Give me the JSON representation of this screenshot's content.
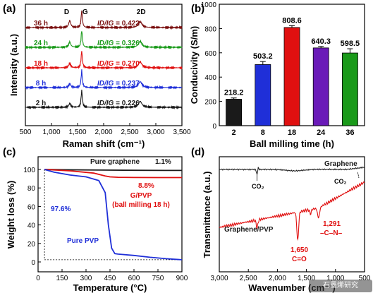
{
  "panels": [
    "(a)",
    "(b)",
    "(c)",
    "(d)"
  ],
  "watermark": "石墨烯研究",
  "chart_data": [
    {
      "panel": "(a)",
      "type": "line",
      "xlabel": "Raman shift (cm⁻¹)",
      "ylabel": "Intensity (a.u.)",
      "xlim": [
        500,
        3500
      ],
      "xticks": [
        "500",
        "1,000",
        "1,500",
        "2,000",
        "2,500",
        "3,000",
        "3,500"
      ],
      "xtick_values": [
        500,
        1000,
        1500,
        2000,
        2500,
        3000,
        3500
      ],
      "peak_labels": [
        {
          "text": "D",
          "x": 1350
        },
        {
          "text": "G",
          "x": 1580
        },
        {
          "text": "2D",
          "x": 2700
        }
      ],
      "series": [
        {
          "name": "2 h",
          "ratio": "I_D/I_G = 0.226",
          "color": "#1a1a1a"
        },
        {
          "name": "8 h",
          "ratio": "I_D/I_G = 0.237",
          "color": "#1f2fd8"
        },
        {
          "name": "18 h",
          "ratio": "I_D/I_G = 0.270",
          "color": "#e01010"
        },
        {
          "name": "24 h",
          "ratio": "I_D/I_G = 0.326",
          "color": "#1a9a1a"
        },
        {
          "name": "36 h",
          "ratio": "I_D/I_G = 0.422",
          "color": "#7a1010"
        }
      ],
      "peaks": [
        {
          "center": 1350,
          "relative_heights": [
            0.226,
            0.237,
            0.27,
            0.326,
            0.422
          ]
        },
        {
          "center": 1580,
          "relative_heights": [
            1,
            1,
            1,
            1,
            1
          ]
        },
        {
          "center": 2700,
          "relative_heights": [
            0.35,
            0.35,
            0.35,
            0.35,
            0.35
          ]
        }
      ]
    },
    {
      "panel": "(b)",
      "type": "bar",
      "xlabel": "Ball milling time (h)",
      "ylabel": "Conducivity (S/m)",
      "categories": [
        "2",
        "8",
        "18",
        "24",
        "36"
      ],
      "values": [
        218.2,
        503.2,
        808.6,
        640.3,
        598.5
      ],
      "value_labels": [
        "218.2",
        "503.2",
        "808.6",
        "640.3",
        "598.5"
      ],
      "errors": [
        10,
        25,
        15,
        12,
        35
      ],
      "colors": [
        "#1a1a1a",
        "#1f2fd8",
        "#e01010",
        "#6a1ab8",
        "#1a9a1a"
      ],
      "ylim": [
        0,
        1000
      ],
      "yticks": [
        0,
        200,
        400,
        600,
        800,
        1000
      ]
    },
    {
      "panel": "(c)",
      "type": "line",
      "xlabel": "Temperature (°C)",
      "ylabel": "Weight loss (%)",
      "xlim": [
        0,
        900
      ],
      "ylim": [
        0,
        100
      ],
      "xticks": [
        0,
        150,
        300,
        450,
        600,
        750,
        900
      ],
      "yticks": [
        0,
        20,
        40,
        60,
        80,
        100
      ],
      "series": [
        {
          "name": "Pure graphene",
          "color": "#1a1a1a",
          "x": [
            40,
            200,
            400,
            600,
            800,
            900
          ],
          "y": [
            100,
            99.6,
            99.3,
            99.1,
            98.95,
            98.9
          ]
        },
        {
          "name": "G/PVP (ball milling 18 h)",
          "color": "#e01010",
          "x": [
            40,
            200,
            350,
            420,
            450,
            500,
            600,
            750,
            900
          ],
          "y": [
            100,
            98.5,
            96,
            93,
            92,
            91.5,
            91.3,
            91.2,
            91.2
          ]
        },
        {
          "name": "Pure PVP",
          "color": "#1f2fd8",
          "x": [
            40,
            100,
            200,
            300,
            380,
            420,
            440,
            460,
            480,
            500,
            600,
            700,
            800,
            900
          ],
          "y": [
            100,
            97,
            94,
            92,
            88,
            75,
            40,
            15,
            9,
            8.5,
            7,
            5,
            3.5,
            2.4
          ]
        }
      ],
      "annotations": [
        {
          "text": "1.1%",
          "color": "#1a1a1a"
        },
        {
          "text": "8.8%",
          "color": "#e01010"
        },
        {
          "text": "97.6%",
          "color": "#1f2fd8"
        }
      ]
    },
    {
      "panel": "(d)",
      "type": "line",
      "xlabel": "Wavenumber (cm⁻¹)",
      "ylabel": "Transmittance (a.u.)",
      "xlim": [
        3000,
        500
      ],
      "xticks": [
        "3,000",
        "2,500",
        "2,000",
        "1,500",
        "1,000",
        "500"
      ],
      "xtick_values": [
        3000,
        2500,
        2000,
        1500,
        1000,
        500
      ],
      "series": [
        {
          "name": "Graphene",
          "color": "#1a1a1a"
        },
        {
          "name": "Graphene/PVP",
          "color": "#e01010"
        }
      ],
      "annotations": [
        {
          "text": "CO₂",
          "x": 2350
        },
        {
          "text": "CO₂",
          "x": 670
        },
        {
          "text": "1,650",
          "x": 1650
        },
        {
          "text": "C=O",
          "x": 1650
        },
        {
          "text": "1,291",
          "x": 1291
        },
        {
          "text": "–C–N–",
          "x": 1291
        }
      ]
    }
  ]
}
